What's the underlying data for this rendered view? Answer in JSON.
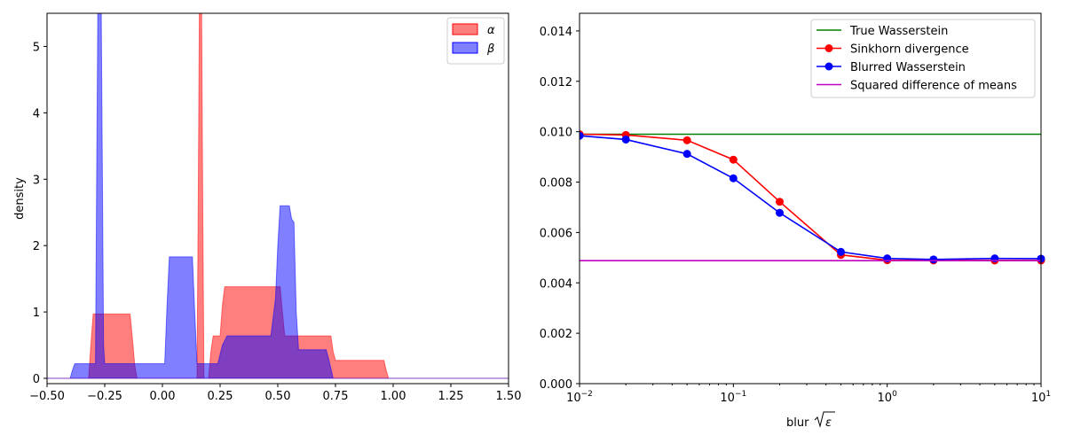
{
  "chart_data": [
    {
      "type": "area",
      "title": "",
      "xlabel": "",
      "ylabel": "density",
      "xlim": [
        -0.5,
        1.5
      ],
      "ylim": [
        -0.08,
        5.5
      ],
      "xticks": [
        "−0.50",
        "−0.25",
        "0.00",
        "0.25",
        "0.50",
        "0.75",
        "1.00",
        "1.25",
        "1.50"
      ],
      "yticks": [
        "0",
        "1",
        "2",
        "3",
        "4",
        "5"
      ],
      "legend_position": "top-right",
      "series": [
        {
          "name": "α",
          "color": "#ff0000",
          "x": [
            -0.5,
            -0.32,
            -0.31,
            -0.3,
            -0.14,
            -0.13,
            -0.12,
            -0.11,
            0.15,
            0.155,
            0.16,
            0.17,
            0.175,
            0.18,
            0.2,
            0.21,
            0.22,
            0.23,
            0.25,
            0.26,
            0.27,
            0.28,
            0.51,
            0.52,
            0.53,
            0.73,
            0.74,
            0.75,
            0.96,
            0.97,
            0.98,
            1.5
          ],
          "y": [
            0,
            0,
            0.5,
            0.97,
            0.97,
            0.6,
            0.2,
            0,
            0,
            2.5,
            5.5,
            5.5,
            2.5,
            0,
            0,
            0.4,
            0.64,
            0.64,
            0.64,
            1.1,
            1.38,
            1.38,
            1.38,
            1.0,
            0.64,
            0.64,
            0.4,
            0.27,
            0.27,
            0.12,
            0,
            0
          ]
        },
        {
          "name": "β",
          "color": "#0000ff",
          "x": [
            -0.5,
            -0.4,
            -0.39,
            -0.38,
            -0.29,
            -0.285,
            -0.28,
            -0.265,
            -0.26,
            -0.255,
            -0.25,
            0.01,
            0.02,
            0.03,
            0.13,
            0.14,
            0.15,
            0.24,
            0.26,
            0.28,
            0.47,
            0.49,
            0.5,
            0.51,
            0.55,
            0.56,
            0.57,
            0.58,
            0.59,
            0.71,
            0.72,
            0.73,
            0.74,
            1.5
          ],
          "y": [
            0,
            0,
            0.12,
            0.22,
            0.22,
            3.0,
            5.5,
            5.5,
            3.0,
            0.5,
            0.22,
            0.22,
            1.1,
            1.83,
            1.83,
            1.0,
            0.22,
            0.22,
            0.5,
            0.64,
            0.64,
            1.2,
            2.0,
            2.6,
            2.6,
            2.4,
            2.35,
            1.0,
            0.43,
            0.43,
            0.3,
            0.15,
            0,
            0
          ]
        }
      ]
    },
    {
      "type": "line",
      "title": "",
      "xlabel_prefix": "blur ",
      "xlabel_symbol": "ε",
      "ylabel": "",
      "xscale": "log",
      "xlim": [
        0.01,
        10
      ],
      "ylim": [
        0,
        0.0147
      ],
      "xticks": [
        {
          "value": 0.01,
          "base": "10",
          "exp": "−2"
        },
        {
          "value": 0.1,
          "base": "10",
          "exp": "−1"
        },
        {
          "value": 1,
          "base": "10",
          "exp": "0"
        },
        {
          "value": 10,
          "base": "10",
          "exp": "1"
        }
      ],
      "yticks": [
        "0.000",
        "0.002",
        "0.004",
        "0.006",
        "0.008",
        "0.010",
        "0.012",
        "0.014"
      ],
      "ytick_values": [
        0,
        0.002,
        0.004,
        0.006,
        0.008,
        0.01,
        0.012,
        0.014
      ],
      "legend_position": "top-right",
      "series": [
        {
          "name": "True Wasserstein",
          "color": "#008000",
          "markers": false,
          "x": [
            0.01,
            10
          ],
          "y": [
            0.0099,
            0.0099
          ]
        },
        {
          "name": "Sinkhorn divergence",
          "color": "#ff0000",
          "markers": true,
          "x": [
            0.01,
            0.02,
            0.05,
            0.1,
            0.2,
            0.5,
            1,
            2,
            5,
            10
          ],
          "y": [
            0.0099,
            0.00987,
            0.00966,
            0.00889,
            0.00722,
            0.00511,
            0.0049,
            0.00489,
            0.00489,
            0.00489
          ]
        },
        {
          "name": "Blurred Wasserstein",
          "color": "#0000ff",
          "markers": true,
          "x": [
            0.01,
            0.02,
            0.05,
            0.1,
            0.2,
            0.5,
            1,
            2,
            5,
            10
          ],
          "y": [
            0.00984,
            0.00969,
            0.00912,
            0.00815,
            0.00678,
            0.00523,
            0.00497,
            0.00493,
            0.00497,
            0.00496
          ]
        },
        {
          "name": "Squared difference of means",
          "color": "#bf00bf",
          "markers": false,
          "x": [
            0.01,
            10
          ],
          "y": [
            0.00488,
            0.00488
          ]
        }
      ]
    }
  ]
}
